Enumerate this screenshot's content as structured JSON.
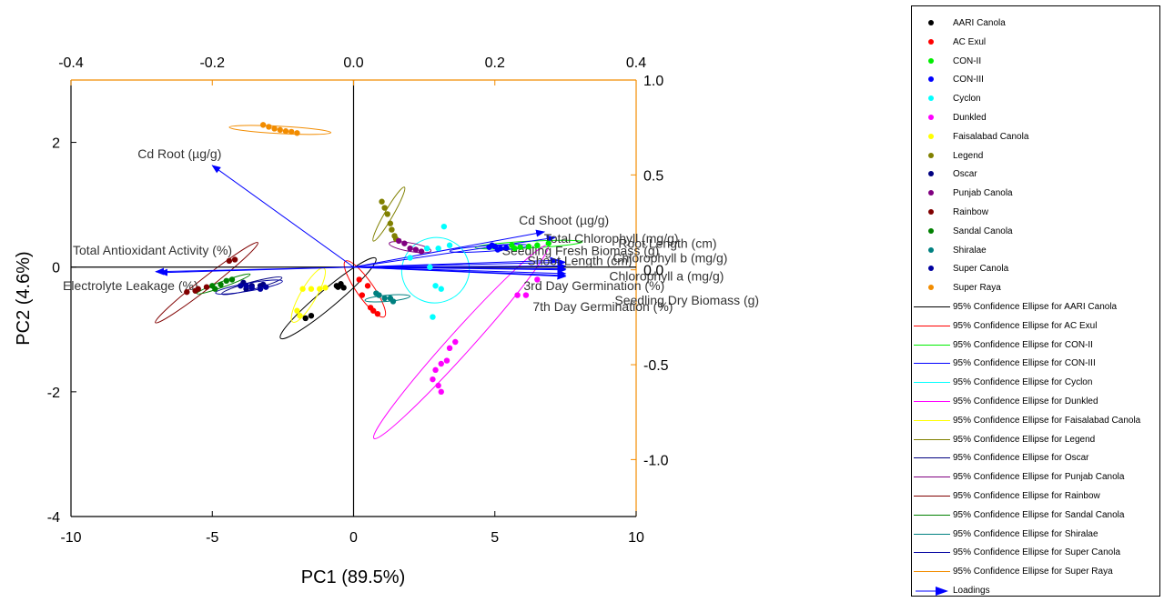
{
  "chart_data": {
    "type": "scatter",
    "xlabel": "PC1 (89.5%)",
    "ylabel": "PC2 (4.6%)",
    "xlim": [
      -10,
      10
    ],
    "ylim": [
      -4,
      3
    ],
    "xticks": [
      -10,
      -5,
      0,
      5,
      10
    ],
    "yticks": [
      -4,
      -2,
      0,
      2
    ],
    "top_axis": {
      "lim": [
        -0.4,
        0.4
      ],
      "ticks": [
        -0.4,
        -0.2,
        0.0,
        0.2,
        0.4
      ],
      "color": "#f28c00"
    },
    "right_axis": {
      "lim": [
        -1.3,
        1.0
      ],
      "ticks": [
        1.0,
        0.5,
        0.0,
        -0.5,
        -1.0
      ],
      "color": "#f28c00"
    },
    "legend_position": "right",
    "groups": [
      {
        "name": "AARI Canola",
        "color": "#000000",
        "points": [
          [
            -1.5,
            -0.78
          ],
          [
            -1.7,
            -0.82
          ],
          [
            -0.6,
            -0.3
          ],
          [
            -0.45,
            -0.27
          ],
          [
            -0.35,
            -0.33
          ],
          [
            -0.55,
            -0.32
          ]
        ],
        "ellipse": {
          "cx": -0.9,
          "cy": -0.5,
          "rx": 2.2,
          "ry": 0.32,
          "angle": 40
        }
      },
      {
        "name": "AC Exul",
        "color": "#ff0000",
        "points": [
          [
            0.3,
            -0.45
          ],
          [
            0.6,
            -0.65
          ],
          [
            0.7,
            -0.7
          ],
          [
            0.85,
            -0.75
          ],
          [
            0.2,
            -0.2
          ],
          [
            0.5,
            -0.3
          ]
        ],
        "ellipse": {
          "cx": 0.4,
          "cy": -0.35,
          "rx": 1.2,
          "ry": 0.3,
          "angle": -55
        }
      },
      {
        "name": "CON-II",
        "color": "#00ee00",
        "points": [
          [
            5.6,
            0.35
          ],
          [
            5.9,
            0.32
          ],
          [
            6.2,
            0.33
          ],
          [
            6.5,
            0.35
          ],
          [
            5.7,
            0.3
          ],
          [
            6.9,
            0.38
          ]
        ],
        "ellipse": {
          "cx": 6.2,
          "cy": 0.36,
          "rx": 1.9,
          "ry": 0.12,
          "angle": 3
        }
      },
      {
        "name": "CON-III",
        "color": "#0000ff",
        "points": [
          [
            4.8,
            0.32
          ],
          [
            5.0,
            0.33
          ],
          [
            5.2,
            0.3
          ],
          [
            5.4,
            0.31
          ],
          [
            4.9,
            0.35
          ],
          [
            5.1,
            0.28
          ]
        ],
        "ellipse": {
          "cx": 4.8,
          "cy": 0.3,
          "rx": 1.4,
          "ry": 0.1,
          "angle": 4
        }
      },
      {
        "name": "Cyclon",
        "color": "#00ffff",
        "points": [
          [
            2.7,
            0.0
          ],
          [
            2.9,
            -0.3
          ],
          [
            3.1,
            -0.35
          ],
          [
            2.8,
            -0.8
          ],
          [
            3.0,
            0.3
          ],
          [
            3.2,
            0.65
          ],
          [
            2.0,
            0.15
          ],
          [
            3.4,
            0.35
          ],
          [
            2.6,
            0.3
          ]
        ],
        "ellipse": {
          "cx": 2.9,
          "cy": -0.05,
          "rx": 1.2,
          "ry": 1.15,
          "angle": 20
        }
      },
      {
        "name": "Dunkled",
        "color": "#ff00ff",
        "points": [
          [
            3.6,
            -1.2
          ],
          [
            3.4,
            -1.3
          ],
          [
            3.3,
            -1.5
          ],
          [
            3.1,
            -1.55
          ],
          [
            2.9,
            -1.65
          ],
          [
            3.0,
            -1.9
          ],
          [
            3.1,
            -2.0
          ],
          [
            2.8,
            -1.8
          ],
          [
            5.8,
            -0.45
          ],
          [
            6.1,
            -0.45
          ],
          [
            6.5,
            -0.2
          ]
        ],
        "ellipse": {
          "cx": 3.8,
          "cy": -1.2,
          "rx": 4.6,
          "ry": 0.4,
          "angle": 48
        }
      },
      {
        "name": "Faisalabad Canola",
        "color": "#ffff00",
        "points": [
          [
            -1.8,
            -0.35
          ],
          [
            -1.5,
            -0.35
          ],
          [
            -1.2,
            -0.35
          ],
          [
            -2.0,
            -0.7
          ],
          [
            -1.9,
            -0.78
          ],
          [
            -1.0,
            -0.33
          ]
        ],
        "ellipse": {
          "cx": -1.6,
          "cy": -0.45,
          "rx": 1.1,
          "ry": 0.28,
          "angle": 60
        }
      },
      {
        "name": "Legend",
        "color": "#808000",
        "points": [
          [
            1.0,
            1.05
          ],
          [
            1.1,
            0.95
          ],
          [
            1.2,
            0.85
          ],
          [
            1.3,
            0.7
          ],
          [
            1.35,
            0.6
          ],
          [
            1.45,
            0.5
          ],
          [
            1.5,
            0.45
          ]
        ],
        "ellipse": {
          "cx": 1.25,
          "cy": 0.85,
          "rx": 1.1,
          "ry": 0.15,
          "angle": 60
        }
      },
      {
        "name": "Oscar",
        "color": "#000080",
        "points": [
          [
            -3.9,
            -0.25
          ],
          [
            -3.6,
            -0.3
          ],
          [
            -3.3,
            -0.3
          ],
          [
            -3.2,
            -0.28
          ],
          [
            -3.8,
            -0.35
          ]
        ],
        "ellipse": {
          "cx": -3.6,
          "cy": -0.3,
          "rx": 1.1,
          "ry": 0.13,
          "angle": 15
        }
      },
      {
        "name": "Punjab Canola",
        "color": "#800080",
        "points": [
          [
            1.6,
            0.42
          ],
          [
            1.8,
            0.38
          ],
          [
            2.0,
            0.3
          ],
          [
            2.2,
            0.28
          ],
          [
            2.4,
            0.25
          ]
        ],
        "ellipse": {
          "cx": 2.0,
          "cy": 0.32,
          "rx": 0.75,
          "ry": 0.15,
          "angle": -10
        }
      },
      {
        "name": "Rainbow",
        "color": "#800000",
        "points": [
          [
            -4.4,
            0.1
          ],
          [
            -4.2,
            0.12
          ],
          [
            -5.5,
            -0.35
          ],
          [
            -5.9,
            -0.4
          ],
          [
            -5.6,
            -0.38
          ],
          [
            -5.2,
            -0.32
          ]
        ],
        "ellipse": {
          "cx": -5.2,
          "cy": -0.25,
          "rx": 2.3,
          "ry": 0.2,
          "angle": 38
        }
      },
      {
        "name": "Sandal Canola",
        "color": "#008000",
        "points": [
          [
            -5.0,
            -0.3
          ],
          [
            -4.7,
            -0.28
          ],
          [
            -4.5,
            -0.22
          ],
          [
            -4.3,
            -0.2
          ],
          [
            -4.9,
            -0.35
          ]
        ],
        "ellipse": {
          "cx": -4.6,
          "cy": -0.27,
          "rx": 1.0,
          "ry": 0.1,
          "angle": 20
        }
      },
      {
        "name": "Shiralae",
        "color": "#008080",
        "points": [
          [
            0.9,
            -0.45
          ],
          [
            1.1,
            -0.5
          ],
          [
            1.3,
            -0.5
          ],
          [
            0.8,
            -0.42
          ],
          [
            1.4,
            -0.55
          ]
        ],
        "ellipse": {
          "cx": 1.2,
          "cy": -0.5,
          "rx": 0.8,
          "ry": 0.11,
          "angle": 5
        }
      },
      {
        "name": "Super Canola",
        "color": "#0000a0",
        "points": [
          [
            -4.0,
            -0.3
          ],
          [
            -3.6,
            -0.33
          ],
          [
            -3.3,
            -0.35
          ],
          [
            -3.1,
            -0.32
          ],
          [
            -3.8,
            -0.3
          ]
        ],
        "ellipse": {
          "cx": -3.7,
          "cy": -0.32,
          "rx": 1.2,
          "ry": 0.14,
          "angle": 10
        }
      },
      {
        "name": "Super Raya",
        "color": "#f28c00",
        "points": [
          [
            -3.2,
            2.28
          ],
          [
            -3.0,
            2.25
          ],
          [
            -2.8,
            2.22
          ],
          [
            -2.6,
            2.2
          ],
          [
            -2.4,
            2.18
          ],
          [
            -2.2,
            2.17
          ],
          [
            -2.0,
            2.15
          ]
        ],
        "ellipse": {
          "cx": -2.6,
          "cy": 2.2,
          "rx": 1.8,
          "ry": 0.13,
          "angle": -3
        }
      }
    ],
    "loadings_name": "Loadings",
    "loadings": [
      {
        "label": "Cd Root (µg/g)",
        "x": -0.2,
        "y": 0.55
      },
      {
        "label": "Cd Shoot (µg/g)",
        "x": 0.27,
        "y": 0.2
      },
      {
        "label": "Total Chlorophyll  (mg/g)",
        "x": 0.285,
        "y": 0.17
      },
      {
        "label": "Seedling Fresh Biomass (g)",
        "x": 0.29,
        "y": 0.05
      },
      {
        "label": "Root Length (cm)",
        "x": 0.3,
        "y": 0.04
      },
      {
        "label": "Chlorophyll b (mg/g)",
        "x": 0.3,
        "y": 0.02
      },
      {
        "label": "Shoot Length (cm)",
        "x": 0.3,
        "y": 0.005
      },
      {
        "label": "Chlorophyll a (mg/g)",
        "x": 0.3,
        "y": 0.0
      },
      {
        "label": "3rd Day Germination (%)",
        "x": 0.3,
        "y": -0.02
      },
      {
        "label": "Seedling Dry Biomass (g)",
        "x": 0.3,
        "y": -0.03
      },
      {
        "label": "7th Day Germination (%)",
        "x": 0.3,
        "y": -0.035
      },
      {
        "label": "Total Antioxidant Activity (%)",
        "x": -0.28,
        "y": -0.01
      },
      {
        "label": "Electrolyte Leakage (%)",
        "x": -0.275,
        "y": -0.015
      }
    ],
    "legend_entries": [
      {
        "label": "AARI Canola",
        "kind": "dot",
        "color": "#000000"
      },
      {
        "label": "AC Exul",
        "kind": "dot",
        "color": "#ff0000"
      },
      {
        "label": "CON-II",
        "kind": "dot",
        "color": "#00ee00"
      },
      {
        "label": "CON-III",
        "kind": "dot",
        "color": "#0000ff"
      },
      {
        "label": "Cyclon",
        "kind": "dot",
        "color": "#00ffff"
      },
      {
        "label": "Dunkled",
        "kind": "dot",
        "color": "#ff00ff"
      },
      {
        "label": "Faisalabad Canola",
        "kind": "dot",
        "color": "#ffff00"
      },
      {
        "label": "Legend",
        "kind": "dot",
        "color": "#808000"
      },
      {
        "label": "Oscar",
        "kind": "dot",
        "color": "#000080"
      },
      {
        "label": "Punjab Canola",
        "kind": "dot",
        "color": "#800080"
      },
      {
        "label": "Rainbow",
        "kind": "dot",
        "color": "#800000"
      },
      {
        "label": "Sandal Canola",
        "kind": "dot",
        "color": "#008000"
      },
      {
        "label": "Shiralae",
        "kind": "dot",
        "color": "#008080"
      },
      {
        "label": "Super Canola",
        "kind": "dot",
        "color": "#0000a0"
      },
      {
        "label": "Super Raya",
        "kind": "dot",
        "color": "#f28c00"
      },
      {
        "label": "95% Confidence Ellipse for AARI Canola",
        "kind": "line",
        "color": "#000000"
      },
      {
        "label": "95% Confidence Ellipse for AC Exul",
        "kind": "line",
        "color": "#ff0000"
      },
      {
        "label": "95% Confidence Ellipse for CON-II",
        "kind": "line",
        "color": "#00ee00"
      },
      {
        "label": "95% Confidence Ellipse for CON-III",
        "kind": "line",
        "color": "#0000ff"
      },
      {
        "label": "95% Confidence Ellipse for Cyclon",
        "kind": "line",
        "color": "#00ffff"
      },
      {
        "label": "95% Confidence Ellipse for Dunkled",
        "kind": "line",
        "color": "#ff00ff"
      },
      {
        "label": "95% Confidence Ellipse for Faisalabad Canola",
        "kind": "line",
        "color": "#ffff00"
      },
      {
        "label": "95% Confidence Ellipse for Legend",
        "kind": "line",
        "color": "#808000"
      },
      {
        "label": "95% Confidence Ellipse for Oscar",
        "kind": "line",
        "color": "#000080"
      },
      {
        "label": "95% Confidence Ellipse for Punjab Canola",
        "kind": "line",
        "color": "#800080"
      },
      {
        "label": "95% Confidence Ellipse for Rainbow",
        "kind": "line",
        "color": "#800000"
      },
      {
        "label": "95% Confidence Ellipse for Sandal Canola",
        "kind": "line",
        "color": "#008000"
      },
      {
        "label": "95% Confidence Ellipse for Shiralae",
        "kind": "line",
        "color": "#008080"
      },
      {
        "label": "95% Confidence Ellipse for Super Canola",
        "kind": "line",
        "color": "#0000a0"
      },
      {
        "label": "95% Confidence Ellipse for Super Raya",
        "kind": "line",
        "color": "#f28c00"
      },
      {
        "label": "Loadings",
        "kind": "arrow",
        "color": "#0000ff"
      }
    ]
  }
}
